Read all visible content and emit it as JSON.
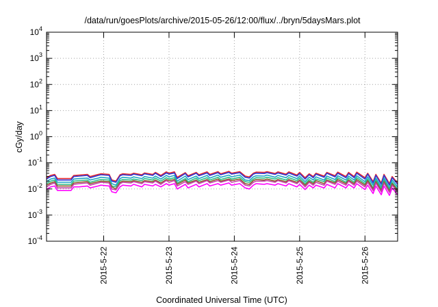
{
  "chart_data": {
    "type": "line",
    "title": "/data/run/goesPlots/archive/2015-05-26/12:00/flux/../bryn/5daysMars.plot",
    "xlabel": "Coordinated Universal Time (UTC)",
    "ylabel": "cGy/day",
    "y_scale": "log",
    "ylim": [
      0.0001,
      10000
    ],
    "xlim": [
      "2015-05-21 03:00",
      "2015-05-26 12:00"
    ],
    "grid": true,
    "y_ticks": [
      {
        "base": "10",
        "exp": "-4",
        "value": 0.0001
      },
      {
        "base": "10",
        "exp": "-3",
        "value": 0.001
      },
      {
        "base": "10",
        "exp": "-2",
        "value": 0.01
      },
      {
        "base": "10",
        "exp": "-1",
        "value": 0.1
      },
      {
        "base": "10",
        "exp": "0",
        "value": 1
      },
      {
        "base": "10",
        "exp": "1",
        "value": 10
      },
      {
        "base": "10",
        "exp": "2",
        "value": 100
      },
      {
        "base": "10",
        "exp": "3",
        "value": 1000
      },
      {
        "base": "10",
        "exp": "4",
        "value": 10000
      }
    ],
    "x_ticks": [
      "2015-5-22",
      "2015-5-23",
      "2015-5-24",
      "2015-5-25",
      "2015-5-26"
    ],
    "x_tick_values": [
      "2015-05-22 00:00",
      "2015-05-23 00:00",
      "2015-05-24 00:00",
      "2015-05-25 00:00",
      "2015-05-26 00:00"
    ],
    "x": [
      "2015-05-21 03:00",
      "2015-05-21 04:30",
      "2015-05-21 06:00",
      "2015-05-21 07:00",
      "2015-05-21 09:00",
      "2015-05-21 12:00",
      "2015-05-21 13:00",
      "2015-05-21 15:00",
      "2015-05-21 18:00",
      "2015-05-21 19:00",
      "2015-05-21 22:00",
      "2015-05-21 23:00",
      "2015-05-22 02:00",
      "2015-05-22 03:00",
      "2015-05-22 04:30",
      "2015-05-22 06:00",
      "2015-05-22 07:00",
      "2015-05-22 10:00",
      "2015-05-22 11:00",
      "2015-05-22 14:00",
      "2015-05-22 15:00",
      "2015-05-22 18:00",
      "2015-05-22 19:00",
      "2015-05-22 21:00",
      "2015-05-22 23:00",
      "2015-05-23 00:00",
      "2015-05-23 02:00",
      "2015-05-23 03:00",
      "2015-05-23 06:00",
      "2015-05-23 07:00",
      "2015-05-23 10:00",
      "2015-05-23 11:00",
      "2015-05-23 14:00",
      "2015-05-23 15:00",
      "2015-05-23 18:00",
      "2015-05-23 19:00",
      "2015-05-23 22:00",
      "2015-05-23 23:00",
      "2015-05-24 02:00",
      "2015-05-24 04:00",
      "2015-05-24 05:30",
      "2015-05-24 07:00",
      "2015-05-24 08:00",
      "2015-05-24 11:00",
      "2015-05-24 12:00",
      "2015-05-24 15:00",
      "2015-05-24 16:00",
      "2015-05-24 19:00",
      "2015-05-24 20:00",
      "2015-05-24 23:00",
      "2015-05-25 00:00",
      "2015-05-25 02:00",
      "2015-05-25 03:30",
      "2015-05-25 05:00",
      "2015-05-25 06:00",
      "2015-05-25 09:00",
      "2015-05-25 10:00",
      "2015-05-25 13:00",
      "2015-05-25 14:00",
      "2015-05-25 17:00",
      "2015-05-25 18:00",
      "2015-05-25 20:00",
      "2015-05-25 21:00",
      "2015-05-26 00:00",
      "2015-05-26 01:00",
      "2015-05-26 03:00",
      "2015-05-26 04:00",
      "2015-05-26 06:00",
      "2015-05-26 07:00",
      "2015-05-26 09:00",
      "2015-05-26 10:00",
      "2015-05-26 12:00"
    ],
    "series": [
      {
        "color": "#e8262a",
        "values": [
          0.027,
          0.033,
          0.036,
          0.025,
          0.025,
          0.025,
          0.033,
          0.034,
          0.036,
          0.03,
          0.036,
          0.038,
          0.036,
          0.022,
          0.02,
          0.035,
          0.038,
          0.036,
          0.04,
          0.035,
          0.041,
          0.036,
          0.043,
          0.033,
          0.045,
          0.04,
          0.045,
          0.028,
          0.042,
          0.032,
          0.043,
          0.035,
          0.045,
          0.036,
          0.046,
          0.038,
          0.047,
          0.04,
          0.046,
          0.031,
          0.029,
          0.04,
          0.044,
          0.043,
          0.046,
          0.039,
          0.045,
          0.037,
          0.045,
          0.034,
          0.043,
          0.027,
          0.038,
          0.03,
          0.04,
          0.031,
          0.043,
          0.032,
          0.044,
          0.03,
          0.043,
          0.03,
          0.044,
          0.027,
          0.04,
          0.019,
          0.036,
          0.017,
          0.036,
          0.016,
          0.03,
          0.017
        ]
      },
      {
        "color": "#2b3ad8",
        "values": [
          0.024,
          0.03,
          0.033,
          0.022,
          0.022,
          0.022,
          0.03,
          0.031,
          0.033,
          0.027,
          0.033,
          0.035,
          0.033,
          0.02,
          0.018,
          0.032,
          0.035,
          0.033,
          0.037,
          0.032,
          0.038,
          0.033,
          0.04,
          0.03,
          0.041,
          0.037,
          0.041,
          0.025,
          0.039,
          0.029,
          0.04,
          0.032,
          0.041,
          0.033,
          0.042,
          0.035,
          0.043,
          0.037,
          0.042,
          0.028,
          0.026,
          0.037,
          0.04,
          0.039,
          0.042,
          0.036,
          0.041,
          0.034,
          0.041,
          0.031,
          0.039,
          0.024,
          0.035,
          0.027,
          0.037,
          0.028,
          0.04,
          0.029,
          0.04,
          0.027,
          0.039,
          0.027,
          0.04,
          0.024,
          0.037,
          0.017,
          0.033,
          0.015,
          0.033,
          0.014,
          0.027,
          0.015
        ]
      },
      {
        "color": "#1fa3c4",
        "values": [
          0.019,
          0.024,
          0.026,
          0.018,
          0.018,
          0.018,
          0.024,
          0.025,
          0.026,
          0.022,
          0.026,
          0.028,
          0.026,
          0.016,
          0.014,
          0.025,
          0.028,
          0.026,
          0.029,
          0.025,
          0.03,
          0.026,
          0.031,
          0.024,
          0.033,
          0.029,
          0.033,
          0.02,
          0.031,
          0.023,
          0.031,
          0.025,
          0.033,
          0.026,
          0.034,
          0.028,
          0.034,
          0.029,
          0.034,
          0.022,
          0.021,
          0.029,
          0.032,
          0.031,
          0.034,
          0.028,
          0.033,
          0.027,
          0.033,
          0.025,
          0.031,
          0.019,
          0.028,
          0.022,
          0.029,
          0.022,
          0.031,
          0.023,
          0.032,
          0.022,
          0.031,
          0.022,
          0.032,
          0.019,
          0.029,
          0.014,
          0.026,
          0.012,
          0.026,
          0.011,
          0.022,
          0.012
        ]
      },
      {
        "color": "#2bbf88",
        "values": [
          0.016,
          0.02,
          0.022,
          0.015,
          0.015,
          0.015,
          0.02,
          0.021,
          0.022,
          0.018,
          0.022,
          0.023,
          0.022,
          0.013,
          0.012,
          0.021,
          0.023,
          0.022,
          0.024,
          0.021,
          0.025,
          0.022,
          0.026,
          0.02,
          0.027,
          0.024,
          0.027,
          0.017,
          0.025,
          0.019,
          0.026,
          0.021,
          0.027,
          0.022,
          0.028,
          0.023,
          0.028,
          0.024,
          0.028,
          0.019,
          0.018,
          0.024,
          0.027,
          0.026,
          0.028,
          0.024,
          0.027,
          0.022,
          0.027,
          0.021,
          0.026,
          0.016,
          0.023,
          0.018,
          0.024,
          0.019,
          0.026,
          0.019,
          0.027,
          0.018,
          0.026,
          0.018,
          0.027,
          0.016,
          0.024,
          0.011,
          0.022,
          0.01,
          0.022,
          0.0095,
          0.018,
          0.01
        ]
      },
      {
        "color": "#8b5a2b",
        "values": [
          0.014,
          0.017,
          0.019,
          0.013,
          0.013,
          0.013,
          0.017,
          0.018,
          0.019,
          0.016,
          0.019,
          0.02,
          0.019,
          0.012,
          0.01,
          0.018,
          0.02,
          0.019,
          0.021,
          0.018,
          0.021,
          0.019,
          0.022,
          0.017,
          0.023,
          0.021,
          0.023,
          0.015,
          0.022,
          0.017,
          0.022,
          0.018,
          0.023,
          0.019,
          0.024,
          0.02,
          0.024,
          0.021,
          0.024,
          0.016,
          0.015,
          0.021,
          0.023,
          0.022,
          0.024,
          0.02,
          0.023,
          0.019,
          0.023,
          0.018,
          0.022,
          0.014,
          0.02,
          0.016,
          0.021,
          0.016,
          0.022,
          0.017,
          0.023,
          0.016,
          0.022,
          0.016,
          0.023,
          0.014,
          0.021,
          0.0098,
          0.019,
          0.0088,
          0.019,
          0.0083,
          0.016,
          0.0088
        ]
      },
      {
        "color": "#c43da5",
        "values": [
          0.012,
          0.015,
          0.017,
          0.011,
          0.011,
          0.011,
          0.015,
          0.016,
          0.017,
          0.014,
          0.017,
          0.018,
          0.017,
          0.01,
          0.0092,
          0.016,
          0.018,
          0.017,
          0.019,
          0.016,
          0.019,
          0.017,
          0.02,
          0.015,
          0.021,
          0.018,
          0.021,
          0.013,
          0.019,
          0.015,
          0.02,
          0.016,
          0.021,
          0.017,
          0.021,
          0.018,
          0.022,
          0.018,
          0.021,
          0.014,
          0.013,
          0.018,
          0.02,
          0.02,
          0.021,
          0.018,
          0.021,
          0.017,
          0.021,
          0.016,
          0.02,
          0.012,
          0.018,
          0.014,
          0.018,
          0.014,
          0.02,
          0.015,
          0.02,
          0.014,
          0.02,
          0.014,
          0.02,
          0.012,
          0.018,
          0.0087,
          0.017,
          0.0078,
          0.017,
          0.0074,
          0.014,
          0.0078
        ]
      },
      {
        "color": "#ff00ff",
        "values": [
          0.0095,
          0.012,
          0.013,
          0.0088,
          0.0088,
          0.0088,
          0.012,
          0.012,
          0.013,
          0.011,
          0.013,
          0.014,
          0.013,
          0.0078,
          0.0071,
          0.012,
          0.014,
          0.013,
          0.015,
          0.012,
          0.015,
          0.013,
          0.015,
          0.012,
          0.016,
          0.014,
          0.016,
          0.01,
          0.015,
          0.011,
          0.015,
          0.012,
          0.016,
          0.013,
          0.016,
          0.014,
          0.017,
          0.014,
          0.016,
          0.011,
          0.01,
          0.014,
          0.016,
          0.015,
          0.016,
          0.014,
          0.016,
          0.013,
          0.016,
          0.012,
          0.015,
          0.0095,
          0.014,
          0.011,
          0.014,
          0.011,
          0.015,
          0.011,
          0.016,
          0.011,
          0.015,
          0.011,
          0.016,
          0.0095,
          0.014,
          0.0067,
          0.013,
          0.006,
          0.013,
          0.0057,
          0.011,
          0.006
        ]
      }
    ]
  }
}
